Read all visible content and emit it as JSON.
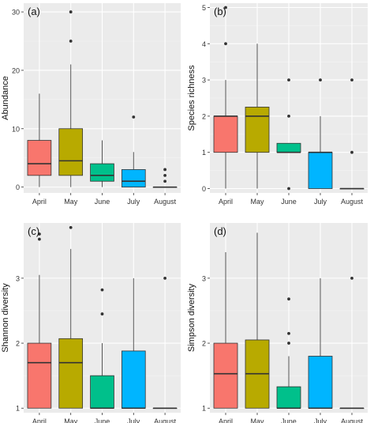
{
  "figure": {
    "colors": {
      "panel_bg": "#ebebeb",
      "grid_major": "#ffffff",
      "grid_minor": "#f4f4f4",
      "box_outline": "#333333",
      "whisker": "#555555",
      "text": "#333333",
      "April": "#f8766d",
      "May": "#b8aa00",
      "June": "#00c08b",
      "July": "#00b5ff",
      "August": "#e76bf3"
    }
  },
  "chart_data": [
    {
      "type": "box",
      "panel_label": "(a)",
      "ylabel": "Abundance",
      "categories": [
        "April",
        "May",
        "June",
        "July",
        "August"
      ],
      "ylim": [
        -1,
        31.5
      ],
      "yticks": [
        0,
        10,
        20,
        30
      ],
      "ytick_labels": [
        "0",
        "10",
        "20",
        "30"
      ],
      "grid": true,
      "boxes": [
        {
          "category": "April",
          "whisker_low": 0,
          "q1": 2,
          "median": 4,
          "q3": 8,
          "whisker_high": 16,
          "outliers": []
        },
        {
          "category": "May",
          "whisker_low": 0,
          "q1": 2,
          "median": 4.5,
          "q3": 10,
          "whisker_high": 21,
          "outliers": [
            25,
            30
          ]
        },
        {
          "category": "June",
          "whisker_low": 0,
          "q1": 1,
          "median": 2,
          "q3": 4,
          "whisker_high": 8,
          "outliers": []
        },
        {
          "category": "July",
          "whisker_low": 0,
          "q1": 0,
          "median": 1,
          "q3": 3,
          "whisker_high": 6,
          "outliers": [
            12
          ]
        },
        {
          "category": "August",
          "whisker_low": 0,
          "q1": 0,
          "median": 0,
          "q3": 0,
          "whisker_high": 0,
          "outliers": [
            1,
            2,
            3
          ]
        }
      ]
    },
    {
      "type": "box",
      "panel_label": "(b)",
      "ylabel": "Species richness",
      "categories": [
        "April",
        "May",
        "June",
        "July",
        "August"
      ],
      "ylim": [
        -0.12,
        5.12
      ],
      "yticks": [
        0,
        1,
        2,
        3,
        4,
        5
      ],
      "ytick_labels": [
        "0",
        "1",
        "2",
        "3",
        "4",
        "5"
      ],
      "grid": true,
      "boxes": [
        {
          "category": "April",
          "whisker_low": 0,
          "q1": 1,
          "median": 2,
          "q3": 2,
          "whisker_high": 3,
          "outliers": [
            4,
            5
          ]
        },
        {
          "category": "May",
          "whisker_low": 0,
          "q1": 1,
          "median": 2,
          "q3": 2.25,
          "whisker_high": 4,
          "outliers": []
        },
        {
          "category": "June",
          "whisker_low": 1,
          "q1": 1,
          "median": 1,
          "q3": 1.25,
          "whisker_high": 1.25,
          "outliers": [
            0,
            2,
            3
          ]
        },
        {
          "category": "July",
          "whisker_low": 0,
          "q1": 0,
          "median": 1,
          "q3": 1,
          "whisker_high": 2,
          "outliers": [
            3
          ]
        },
        {
          "category": "August",
          "whisker_low": 0,
          "q1": 0,
          "median": 0,
          "q3": 0,
          "whisker_high": 0,
          "outliers": [
            1,
            3
          ]
        }
      ]
    },
    {
      "type": "box",
      "panel_label": "(c)",
      "ylabel": "Shannon diversity",
      "categories": [
        "April",
        "May",
        "June",
        "July",
        "August"
      ],
      "ylim": [
        0.93,
        3.85
      ],
      "yticks": [
        1,
        2,
        3
      ],
      "ytick_labels": [
        "1",
        "2",
        "3"
      ],
      "grid": true,
      "boxes": [
        {
          "category": "April",
          "whisker_low": 1,
          "q1": 1,
          "median": 1.7,
          "q3": 2.0,
          "whisker_high": 3.05,
          "outliers": [
            3.6,
            3.68
          ]
        },
        {
          "category": "May",
          "whisker_low": 1,
          "q1": 1,
          "median": 1.7,
          "q3": 2.07,
          "whisker_high": 3.45,
          "outliers": [
            3.78
          ]
        },
        {
          "category": "June",
          "whisker_low": 1,
          "q1": 1,
          "median": 1,
          "q3": 1.5,
          "whisker_high": 2.0,
          "outliers": [
            2.45,
            2.82
          ]
        },
        {
          "category": "July",
          "whisker_low": 1,
          "q1": 1,
          "median": 1,
          "q3": 1.88,
          "whisker_high": 3.0,
          "outliers": []
        },
        {
          "category": "August",
          "whisker_low": 1,
          "q1": 1,
          "median": 1,
          "q3": 1,
          "whisker_high": 1,
          "outliers": [
            3.0
          ]
        }
      ]
    },
    {
      "type": "box",
      "panel_label": "(d)",
      "ylabel": "Simpson diversity",
      "categories": [
        "April",
        "May",
        "June",
        "July",
        "August"
      ],
      "ylim": [
        0.93,
        3.85
      ],
      "yticks": [
        1,
        2,
        3
      ],
      "ytick_labels": [
        "1",
        "2",
        "3"
      ],
      "grid": true,
      "boxes": [
        {
          "category": "April",
          "whisker_low": 1,
          "q1": 1,
          "median": 1.53,
          "q3": 2.0,
          "whisker_high": 3.4,
          "outliers": []
        },
        {
          "category": "May",
          "whisker_low": 1,
          "q1": 1,
          "median": 1.53,
          "q3": 2.05,
          "whisker_high": 3.7,
          "outliers": []
        },
        {
          "category": "June",
          "whisker_low": 1,
          "q1": 1,
          "median": 1,
          "q3": 1.33,
          "whisker_high": 1.8,
          "outliers": [
            2.0,
            2.15,
            2.68
          ]
        },
        {
          "category": "July",
          "whisker_low": 1,
          "q1": 1,
          "median": 1,
          "q3": 1.8,
          "whisker_high": 3.0,
          "outliers": []
        },
        {
          "category": "August",
          "whisker_low": 1,
          "q1": 1,
          "median": 1,
          "q3": 1,
          "whisker_high": 1,
          "outliers": [
            3.0
          ]
        }
      ]
    }
  ]
}
